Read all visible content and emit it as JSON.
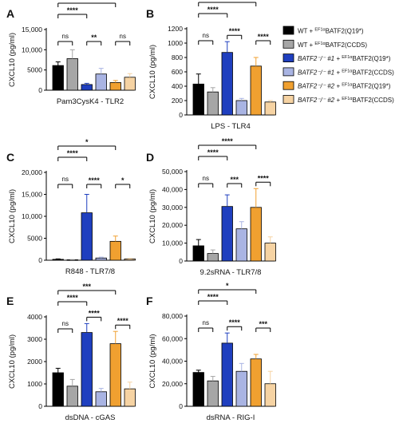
{
  "chart_data": [
    {
      "type": "bar",
      "panel": "A",
      "xlabel": "Pam3CysK4 - TLR2",
      "ylabel": "CXCL10 (pg/ml)",
      "ylim": [
        0,
        15000
      ],
      "yticks": [
        "0",
        "5000",
        "10,000",
        "15,000"
      ],
      "values": [
        6100,
        7800,
        1400,
        4000,
        1900,
        3200
      ],
      "errors": [
        900,
        2200,
        300,
        1400,
        500,
        900
      ],
      "comparisons": [
        {
          "a": 0,
          "b": 2,
          "label": "****"
        },
        {
          "a": 0,
          "b": 4,
          "label": "****"
        },
        {
          "a": 0,
          "b": 1,
          "label": "ns"
        },
        {
          "a": 2,
          "b": 3,
          "label": "**"
        },
        {
          "a": 4,
          "b": 5,
          "label": "ns"
        }
      ]
    },
    {
      "type": "bar",
      "panel": "B",
      "xlabel": "LPS - TLR4",
      "ylabel": "CXCL10 (pg/ml)",
      "ylim": [
        0,
        1200
      ],
      "yticks": [
        "0",
        "200",
        "400",
        "600",
        "800",
        "1000",
        "1200"
      ],
      "values": [
        430,
        320,
        870,
        200,
        680,
        180
      ],
      "errors": [
        140,
        60,
        150,
        30,
        120,
        20
      ],
      "comparisons": [
        {
          "a": 0,
          "b": 2,
          "label": "****"
        },
        {
          "a": 0,
          "b": 4,
          "label": "**"
        },
        {
          "a": 0,
          "b": 1,
          "label": "ns"
        },
        {
          "a": 2,
          "b": 3,
          "label": "****"
        },
        {
          "a": 4,
          "b": 5,
          "label": "****"
        }
      ]
    },
    {
      "type": "bar",
      "panel": "C",
      "xlabel": "R848 - TLR7/8",
      "ylabel": "CXCL10 (pg/ml)",
      "ylim": [
        0,
        20000
      ],
      "yticks": [
        "0",
        "5000",
        "10,000",
        "15,000",
        "20,000"
      ],
      "values": [
        200,
        100,
        10800,
        500,
        4300,
        300
      ],
      "errors": [
        100,
        50,
        4200,
        200,
        1200,
        100
      ],
      "comparisons": [
        {
          "a": 0,
          "b": 2,
          "label": "****"
        },
        {
          "a": 0,
          "b": 4,
          "label": "*"
        },
        {
          "a": 0,
          "b": 1,
          "label": "ns"
        },
        {
          "a": 2,
          "b": 3,
          "label": "****"
        },
        {
          "a": 4,
          "b": 5,
          "label": "*"
        }
      ]
    },
    {
      "type": "bar",
      "panel": "D",
      "xlabel": "9.2sRNA - TLR7/8",
      "ylabel": "CXCL10 (pg/ml)",
      "ylim": [
        0,
        50000
      ],
      "yticks": [
        "0",
        "10,000",
        "20,000",
        "30,000",
        "40,000",
        "50,000"
      ],
      "values": [
        8500,
        4200,
        30500,
        18000,
        30000,
        10000
      ],
      "errors": [
        3500,
        2000,
        6500,
        4000,
        10500,
        3500
      ],
      "comparisons": [
        {
          "a": 0,
          "b": 2,
          "label": "****"
        },
        {
          "a": 0,
          "b": 4,
          "label": "****"
        },
        {
          "a": 0,
          "b": 1,
          "label": "ns"
        },
        {
          "a": 2,
          "b": 3,
          "label": "***"
        },
        {
          "a": 4,
          "b": 5,
          "label": "****"
        }
      ]
    },
    {
      "type": "bar",
      "panel": "E",
      "xlabel": "dsDNA - cGAS",
      "ylabel": "CXCL10 (pg/ml)",
      "ylim": [
        0,
        4000
      ],
      "yticks": [
        "0",
        "1000",
        "2000",
        "3000",
        "4000"
      ],
      "values": [
        1500,
        900,
        3300,
        650,
        2800,
        780
      ],
      "errors": [
        200,
        300,
        400,
        150,
        550,
        300
      ],
      "comparisons": [
        {
          "a": 0,
          "b": 2,
          "label": "****"
        },
        {
          "a": 0,
          "b": 4,
          "label": "***"
        },
        {
          "a": 0,
          "b": 1,
          "label": "ns"
        },
        {
          "a": 2,
          "b": 3,
          "label": "****"
        },
        {
          "a": 4,
          "b": 5,
          "label": "****"
        }
      ]
    },
    {
      "type": "bar",
      "panel": "F",
      "xlabel": "dsRNA - RIG-I",
      "ylabel": "CXCL10 (pg/ml)",
      "ylim": [
        0,
        80000
      ],
      "yticks": [
        "0",
        "20,000",
        "40,000",
        "60,000",
        "80,000"
      ],
      "values": [
        30000,
        22500,
        56000,
        31000,
        42000,
        20000
      ],
      "errors": [
        2000,
        4000,
        9000,
        7000,
        4000,
        11000
      ],
      "comparisons": [
        {
          "a": 0,
          "b": 2,
          "label": "****"
        },
        {
          "a": 0,
          "b": 4,
          "label": "*"
        },
        {
          "a": 0,
          "b": 1,
          "label": "ns"
        },
        {
          "a": 2,
          "b": 3,
          "label": "****"
        },
        {
          "a": 4,
          "b": 5,
          "label": "***"
        }
      ]
    }
  ],
  "legend": [
    {
      "color": "#000000",
      "prefix": "WT + ",
      "prefix_italic": false,
      "sup": "EF1α",
      "suffix": "BATF2(Q19*)"
    },
    {
      "color": "#a6a6a6",
      "prefix": "WT + ",
      "prefix_italic": false,
      "sup": "EF1α",
      "suffix": "BATF2(CCDS)"
    },
    {
      "color": "#1f3fbf",
      "prefix": "BATF2⁻/⁻ #1 + ",
      "prefix_italic": true,
      "sup": "EF1α",
      "suffix": "BATF2(Q19*)"
    },
    {
      "color": "#a9b4e3",
      "prefix": "BATF2⁻/⁻ #1 + ",
      "prefix_italic": true,
      "sup": "EF1α",
      "suffix": "BATF2(CCDS)"
    },
    {
      "color": "#f0a030",
      "prefix": "BATF2⁻/⁻ #2 + ",
      "prefix_italic": true,
      "sup": "EF1α",
      "suffix": "BATF2(Q19*)"
    },
    {
      "color": "#f6d3a3",
      "prefix": "BATF2⁻/⁻ #2 + ",
      "prefix_italic": true,
      "sup": "EF1α",
      "suffix": "BATF2(CCDS)"
    }
  ]
}
